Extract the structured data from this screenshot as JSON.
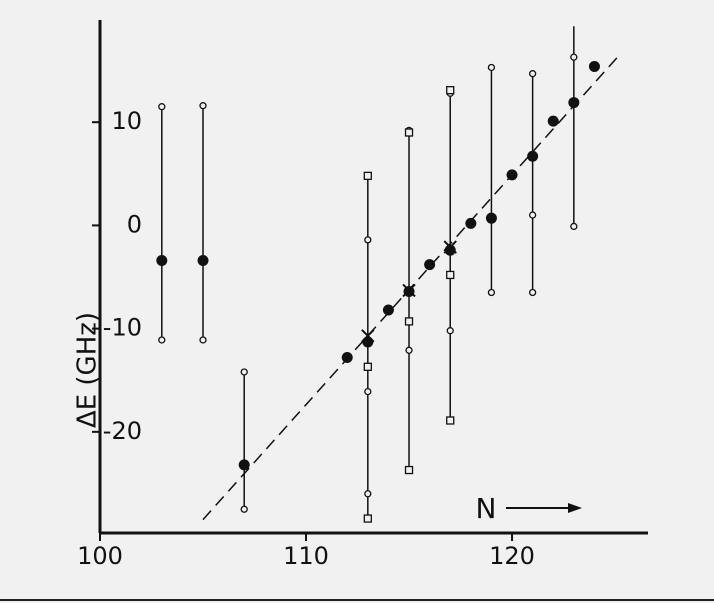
{
  "chart_data": {
    "type": "scatter",
    "y_label": "ΔE (GHz)",
    "annotation": "N",
    "xlim": [
      100,
      126.6
    ],
    "ylim": [
      -29.8,
      19.9
    ],
    "xticks": [
      100,
      110,
      120
    ],
    "yticks": [
      -20,
      -10,
      0,
      10
    ],
    "color": "#111111",
    "series": [
      {
        "marker": "range",
        "x": [
          103,
          105,
          107,
          113,
          115,
          117,
          119,
          121,
          123
        ],
        "low": [
          -11.1,
          -11.1,
          -27.5,
          -28.4,
          -23.7,
          -18.9,
          -6.5,
          -6.5,
          -0.1
        ],
        "high": [
          11.5,
          11.6,
          -14.2,
          4.8,
          9.5,
          13.1,
          15.3,
          14.7,
          19.3
        ]
      },
      {
        "marker": "dashed-line",
        "x": [
          105,
          125.3
        ],
        "values": [
          -28.5,
          16.7
        ]
      },
      {
        "marker": "open-circle",
        "x": [
          103,
          103,
          105,
          105,
          107,
          107,
          113,
          113,
          113,
          115,
          115,
          117,
          117,
          119,
          119,
          121,
          121,
          121,
          123,
          123
        ],
        "values": [
          11.5,
          -11.1,
          11.6,
          -11.1,
          -14.2,
          -27.5,
          -1.4,
          -16.1,
          -26.0,
          9.2,
          -12.1,
          12.8,
          -10.2,
          15.3,
          -6.5,
          14.7,
          1.0,
          -6.5,
          16.3,
          -0.1
        ]
      },
      {
        "marker": "open-square",
        "x": [
          113,
          113,
          113,
          115,
          115,
          115,
          117,
          117,
          117
        ],
        "values": [
          4.8,
          -13.7,
          -28.4,
          9.0,
          -9.3,
          -23.7,
          13.1,
          -4.8,
          -18.9
        ]
      },
      {
        "marker": "cross",
        "x": [
          113,
          115,
          117
        ],
        "values": [
          -10.7,
          -6.3,
          -2.1
        ]
      },
      {
        "marker": "filled-circle",
        "x": [
          103,
          105,
          107,
          112,
          113,
          114,
          115,
          116,
          117,
          118,
          119,
          120,
          121,
          122,
          123,
          124
        ],
        "values": [
          -3.4,
          -3.4,
          -23.2,
          -12.8,
          -11.3,
          -8.2,
          -6.4,
          -3.8,
          -2.4,
          0.2,
          0.7,
          4.9,
          6.7,
          10.1,
          11.9,
          15.4
        ]
      }
    ]
  }
}
